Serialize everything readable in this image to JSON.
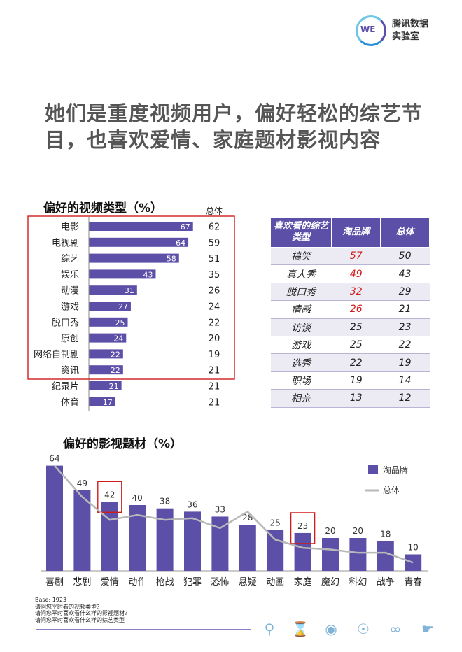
{
  "logo": {
    "mark": "WE",
    "text_line1": "腾讯数据",
    "text_line2": "实验室"
  },
  "headline": "她们是重度视频用户，偏好轻松的综艺节目，也喜欢爱情、家庭题材影视内容",
  "colors": {
    "bar": "#5b4fa8",
    "line": "#b8b8b8",
    "highlight": "#d01c1c"
  },
  "chart_data": [
    {
      "type": "bar",
      "orientation": "horizontal",
      "title": "偏好的视频类型（%）",
      "total_header": "总体",
      "categories": [
        "电影",
        "电视剧",
        "综艺",
        "娱乐",
        "动漫",
        "游戏",
        "脱口秀",
        "原创",
        "网络自制剧",
        "资讯",
        "纪录片",
        "体育"
      ],
      "series": [
        {
          "name": "",
          "values": [
            67,
            64,
            58,
            43,
            31,
            27,
            25,
            24,
            22,
            22,
            21,
            17
          ]
        },
        {
          "name": "总体",
          "values": [
            62,
            59,
            51,
            35,
            26,
            24,
            22,
            20,
            19,
            21,
            21,
            21
          ]
        }
      ],
      "highlight_box": "电影-资讯"
    },
    {
      "type": "bar",
      "title": "偏好的影视题材（%）",
      "categories": [
        "喜剧",
        "悲剧",
        "爱情",
        "动作",
        "枪战",
        "犯罪",
        "恐怖",
        "悬疑",
        "动画",
        "家庭",
        "魔幻",
        "科幻",
        "战争",
        "青春"
      ],
      "series": [
        {
          "name": "淘品牌",
          "type": "bar",
          "values": [
            64,
            49,
            42,
            40,
            38,
            36,
            33,
            28,
            25,
            23,
            20,
            20,
            18,
            10
          ]
        },
        {
          "name": "总体",
          "type": "line",
          "values": [
            64,
            45,
            31,
            34,
            31,
            32,
            26,
            36,
            19,
            14,
            13,
            11,
            11,
            5
          ]
        }
      ],
      "highlighted": [
        "爱情",
        "家庭"
      ],
      "legend_position": "top-right"
    },
    {
      "type": "table",
      "headers": [
        "喜欢看的综艺类型",
        "淘品牌",
        "总体"
      ],
      "rows": [
        [
          "搞笑",
          "57",
          "50"
        ],
        [
          "真人秀",
          "49",
          "43"
        ],
        [
          "脱口秀",
          "32",
          "29"
        ],
        [
          "情感",
          "26",
          "21"
        ],
        [
          "访谈",
          "25",
          "23"
        ],
        [
          "游戏",
          "25",
          "22"
        ],
        [
          "选秀",
          "22",
          "19"
        ],
        [
          "职场",
          "19",
          "14"
        ],
        [
          "相亲",
          "13",
          "12"
        ]
      ],
      "highlighted_rows": 4
    }
  ],
  "base_notes": [
    "Base: 1923",
    "请问您平时看的视频类型？",
    "请问您平时喜欢看什么样的影视题材？",
    "请问您平时喜欢看什么样的综艺类型"
  ],
  "footer_icons": [
    "search-icon",
    "hourglass-icon",
    "eye-icon",
    "globe-icon",
    "infinity-icon",
    "handshake-icon"
  ]
}
